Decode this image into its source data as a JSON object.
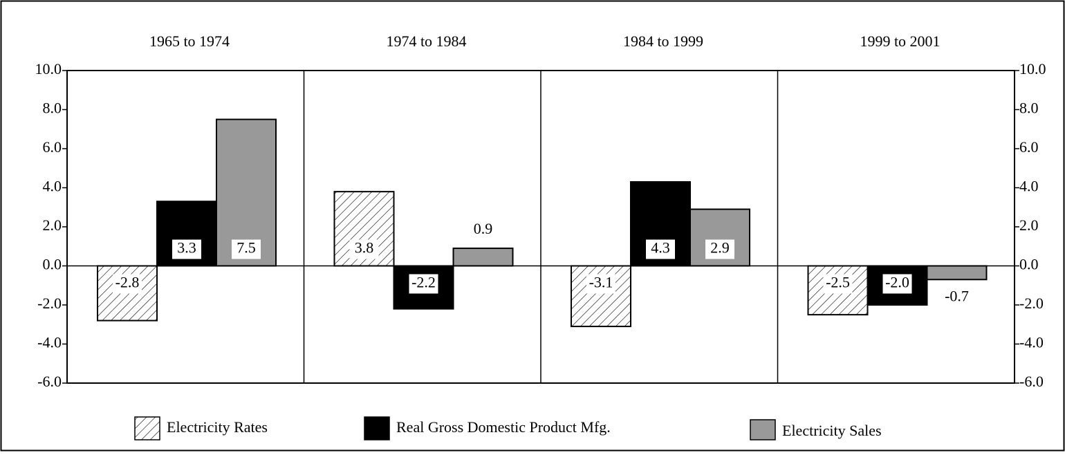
{
  "chart_data": {
    "type": "bar",
    "categories": [
      "1965 to 1974",
      "1974 to 1984",
      "1984 to 1999",
      "1999 to 2001"
    ],
    "series": [
      {
        "name": "Electricity Rates",
        "color": "#ffffff",
        "pattern": "diagonal-hatch",
        "values": [
          -2.8,
          3.8,
          -3.1,
          -2.5
        ],
        "value_labels": [
          "-2.8",
          "3.8",
          "-3.1",
          "-2.5"
        ]
      },
      {
        "name": "Real Gross Domestic Product Mfg.",
        "color": "#000000",
        "values": [
          3.3,
          -2.2,
          4.3,
          -2.0
        ],
        "value_labels": [
          "3.3",
          "-2.2",
          "4.3",
          "-2.0"
        ]
      },
      {
        "name": "Electricity Sales",
        "color": "#999999",
        "values": [
          7.5,
          0.9,
          2.9,
          -0.7
        ],
        "value_labels": [
          "7.5",
          "0.9",
          "2.9",
          "-0.7"
        ]
      }
    ],
    "ylim": [
      -6,
      10
    ],
    "yticks": [
      {
        "value": -6,
        "label": "-6.0"
      },
      {
        "value": -4,
        "label": "-4.0"
      },
      {
        "value": -2,
        "label": "-2.0"
      },
      {
        "value": 0,
        "label": "0.0"
      },
      {
        "value": 2,
        "label": "2.0"
      },
      {
        "value": 4,
        "label": "4.0"
      },
      {
        "value": 6,
        "label": "6.0"
      },
      {
        "value": 8,
        "label": "8.0"
      },
      {
        "value": 10,
        "label": "10.0"
      }
    ],
    "legend": "bottom"
  }
}
